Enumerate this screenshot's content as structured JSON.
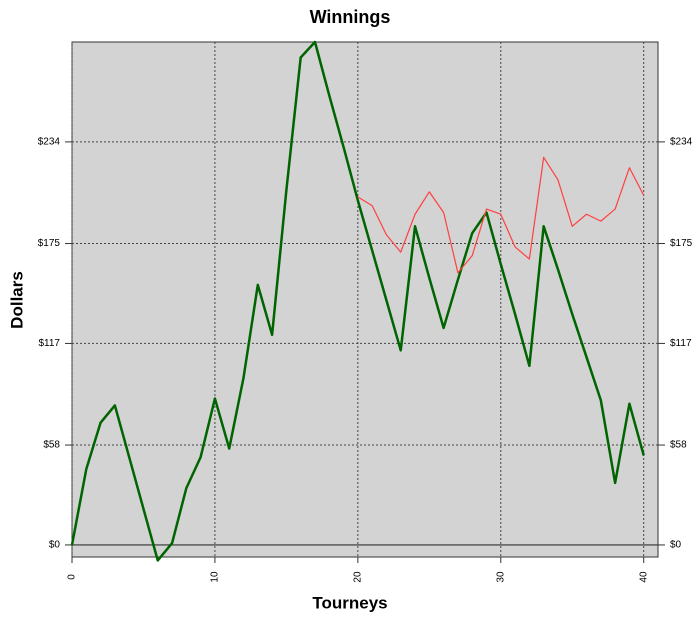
{
  "chart_data": {
    "type": "line",
    "title": "Winnings",
    "x_label": "Tourneys",
    "y_label": "Dollars",
    "x": [
      0,
      1,
      2,
      3,
      4,
      5,
      6,
      7,
      8,
      9,
      10,
      11,
      12,
      13,
      14,
      15,
      16,
      17,
      18,
      19,
      20,
      21,
      22,
      23,
      24,
      25,
      26,
      27,
      28,
      29,
      30,
      31,
      32,
      33,
      34,
      35,
      36,
      37,
      38,
      39,
      40
    ],
    "series": [
      {
        "color": "#006400",
        "width": 2.5,
        "values": [
          0,
          44,
          71,
          81,
          51,
          21,
          -9,
          1,
          33,
          51,
          85,
          56,
          97,
          151,
          122,
          206,
          283,
          292,
          261,
          231,
          200,
          171,
          142,
          113,
          185,
          155,
          126,
          154,
          181,
          193,
          163,
          134,
          104,
          185,
          160,
          134,
          109,
          84,
          36,
          82,
          52
        ]
      },
      {
        "color": "#ff4040",
        "width": 1.2,
        "values": [
          null,
          null,
          null,
          null,
          null,
          null,
          null,
          null,
          null,
          null,
          null,
          null,
          null,
          null,
          null,
          null,
          null,
          null,
          null,
          null,
          202,
          197,
          180,
          170,
          192,
          205,
          193,
          158,
          168,
          195,
          192,
          173,
          166,
          225,
          212,
          185,
          192,
          188,
          195,
          219,
          203
        ]
      }
    ],
    "xlim": [
      0,
      41
    ],
    "ylim": [
      -7,
      292
    ],
    "xticks": [
      0,
      10,
      20,
      30,
      40
    ],
    "yticks": [
      {
        "value": 0,
        "label": "$0"
      },
      {
        "value": 58,
        "label": "$58"
      },
      {
        "value": 117,
        "label": "$117"
      },
      {
        "value": 175,
        "label": "$175"
      },
      {
        "value": 234,
        "label": "$234"
      }
    ],
    "grid": true,
    "background": "#d3d3d3"
  }
}
